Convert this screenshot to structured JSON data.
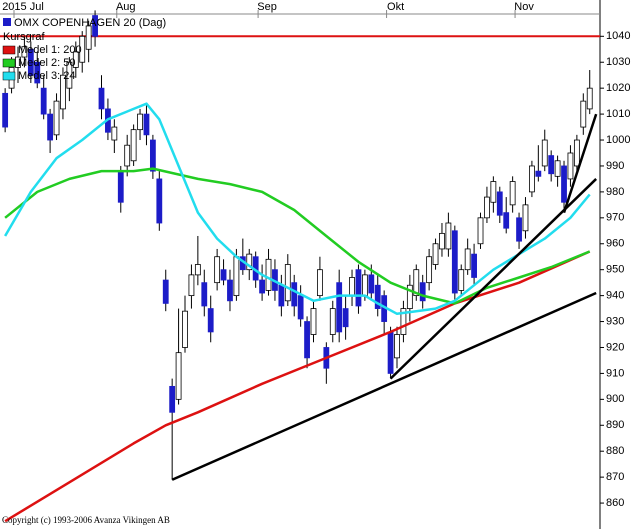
{
  "chart_data": {
    "type": "candlestick",
    "title": "OMX COPENHAGEN 20 (Dag)",
    "legend_title": "Kursgraf",
    "copyright": "Copyright (c) 1993-2006 Avanza Vikingen AB",
    "categories": [
      null,
      null,
      "2015 Jul",
      null,
      null,
      null,
      null,
      null,
      null,
      null,
      null,
      null,
      null,
      null,
      null,
      null,
      null,
      null,
      "Aug",
      null,
      null,
      null,
      null,
      null,
      null,
      null,
      null,
      null,
      null,
      null,
      null,
      null,
      null,
      null,
      null,
      null,
      null,
      null,
      null,
      null,
      "Sep",
      null,
      null,
      null,
      null,
      null,
      null,
      null,
      null,
      null,
      null,
      null,
      null,
      null,
      null,
      null,
      null,
      null,
      null,
      null,
      "Okt",
      null,
      null,
      null,
      null,
      null,
      null,
      null,
      null,
      null,
      null,
      null,
      null,
      null,
      null,
      null,
      null,
      null,
      null,
      null,
      "Nov",
      null,
      null,
      null,
      null,
      null,
      null,
      null,
      null,
      null,
      null,
      null
    ],
    "open": [
      1018,
      1020,
      1028,
      1032,
      1035,
      1030,
      1020,
      1010,
      1002,
      1012,
      1020,
      1028,
      1030,
      1035,
      1048,
      1020,
      1012,
      1000,
      988,
      990,
      992,
      1004,
      1010,
      1000,
      985,
      946,
      905,
      900,
      920,
      940,
      948,
      945,
      935,
      945,
      950,
      946,
      940,
      955,
      950,
      955,
      946,
      942,
      950,
      944,
      938,
      945,
      940,
      930,
      925,
      940,
      920,
      925,
      945,
      935,
      940,
      950,
      940,
      948,
      944,
      940,
      926,
      916,
      925,
      935,
      940,
      945,
      945,
      952,
      958,
      958,
      965,
      942,
      950,
      956,
      960,
      970,
      976,
      980,
      972,
      975,
      970,
      965,
      980,
      988,
      990,
      994,
      986,
      990,
      985,
      990,
      1005,
      1012
    ],
    "high": [
      1020,
      1032,
      1036,
      1040,
      1038,
      1034,
      1025,
      1012,
      1018,
      1028,
      1032,
      1038,
      1042,
      1046,
      1050,
      1025,
      1016,
      1008,
      990,
      1002,
      1006,
      1012,
      1014,
      1002,
      988,
      950,
      908,
      935,
      940,
      952,
      963,
      950,
      940,
      958,
      954,
      950,
      958,
      962,
      958,
      957,
      952,
      958,
      954,
      948,
      956,
      948,
      944,
      932,
      938,
      955,
      922,
      938,
      950,
      940,
      950,
      952,
      950,
      952,
      948,
      942,
      928,
      928,
      938,
      948,
      952,
      948,
      958,
      962,
      968,
      972,
      967,
      952,
      962,
      960,
      972,
      982,
      986,
      982,
      978,
      986,
      972,
      978,
      992,
      998,
      1004,
      996,
      994,
      992,
      998,
      1002,
      1018,
      1027
    ],
    "low": [
      1003,
      1018,
      1022,
      1028,
      1022,
      1020,
      1008,
      995,
      1000,
      1008,
      1015,
      1024,
      1026,
      1030,
      1036,
      1008,
      1000,
      995,
      972,
      986,
      990,
      1000,
      998,
      985,
      965,
      934,
      869,
      898,
      918,
      935,
      944,
      932,
      922,
      942,
      944,
      934,
      938,
      948,
      946,
      943,
      938,
      940,
      938,
      932,
      936,
      932,
      928,
      912,
      922,
      938,
      906,
      922,
      922,
      923,
      936,
      933,
      938,
      938,
      932,
      925,
      908,
      912,
      922,
      930,
      938,
      935,
      942,
      950,
      955,
      955,
      938,
      940,
      948,
      944,
      958,
      968,
      972,
      968,
      964,
      972,
      958,
      962,
      978,
      984,
      988,
      984,
      982,
      972,
      982,
      988,
      1002,
      1010
    ],
    "close": [
      1005,
      1028,
      1032,
      1036,
      1025,
      1022,
      1010,
      1000,
      1015,
      1025,
      1030,
      1034,
      1040,
      1044,
      1040,
      1012,
      1003,
      1005,
      976,
      998,
      1004,
      1010,
      1002,
      988,
      968,
      937,
      895,
      918,
      934,
      948,
      952,
      936,
      926,
      955,
      946,
      938,
      955,
      950,
      956,
      946,
      941,
      954,
      942,
      936,
      952,
      936,
      931,
      916,
      935,
      950,
      912,
      935,
      926,
      928,
      947,
      936,
      948,
      941,
      935,
      930,
      910,
      925,
      935,
      944,
      950,
      938,
      955,
      960,
      964,
      968,
      941,
      950,
      958,
      947,
      970,
      978,
      984,
      971,
      966,
      984,
      961,
      975,
      990,
      986,
      1000,
      987,
      992,
      976,
      995,
      1000,
      1015,
      1020
    ],
    "up_color": "#ffffff",
    "down_color": "#1c1cc8",
    "xlim": [
      -0.8,
      92.6
    ],
    "ylim": [
      850,
      1054
    ],
    "yticks": [
      860,
      870,
      880,
      890,
      900,
      910,
      920,
      930,
      940,
      950,
      960,
      970,
      980,
      990,
      1000,
      1010,
      1020,
      1030,
      1040
    ],
    "series": [
      {
        "name": "Medel 1: 200",
        "color": "#dd1111",
        "x": [
          0,
          10,
          20,
          25,
          30,
          40,
          50,
          60,
          70,
          80,
          91
        ],
        "values": [
          853,
          868,
          883,
          890,
          895,
          906,
          916,
          926,
          937,
          945,
          957
        ]
      },
      {
        "name": "Medel 2: 50",
        "color": "#22cc22",
        "x": [
          0,
          5,
          10,
          15,
          20,
          23,
          30,
          35,
          40,
          45,
          50,
          55,
          60,
          65,
          70,
          75,
          80,
          85,
          91
        ],
        "values": [
          970,
          980,
          985,
          988,
          988,
          989,
          985,
          983,
          980,
          973,
          963,
          953,
          945,
          940,
          937,
          943,
          947,
          951,
          957
        ]
      },
      {
        "name": "Medel 3: 24",
        "color": "#22ddee",
        "x": [
          0,
          4,
          8,
          12,
          16,
          20,
          22,
          24,
          27,
          30,
          33,
          36,
          40,
          44,
          48,
          52,
          56,
          58,
          61,
          64,
          67,
          70,
          73,
          76,
          80,
          84,
          88,
          91
        ],
        "values": [
          963,
          980,
          993,
          1000,
          1008,
          1012,
          1014,
          1008,
          990,
          972,
          962,
          955,
          948,
          943,
          938,
          940,
          940,
          937,
          933,
          934,
          935,
          938,
          944,
          950,
          956,
          962,
          970,
          979
        ]
      }
    ],
    "hline": {
      "value": 1040,
      "color": "#dd1111"
    },
    "trend_lines": [
      {
        "x": [
          26,
          92
        ],
        "y": [
          869,
          941
        ]
      },
      {
        "x": [
          60,
          92
        ],
        "y": [
          908,
          985
        ]
      },
      {
        "x": [
          87,
          92
        ],
        "y": [
          972,
          1010
        ]
      }
    ]
  }
}
